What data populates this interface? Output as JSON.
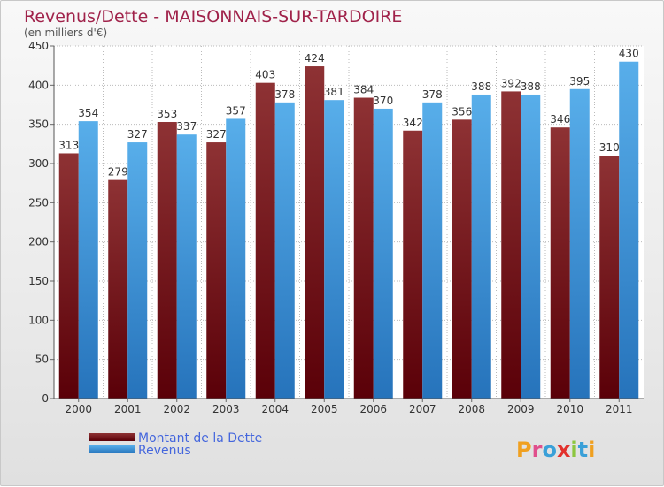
{
  "chart_data": {
    "type": "bar",
    "title": "Revenus/Dette - MAISONNAIS-SUR-TARDOIRE",
    "subtitle": "(en milliers d'€)",
    "categories": [
      "2000",
      "2001",
      "2002",
      "2003",
      "2004",
      "2005",
      "2006",
      "2007",
      "2008",
      "2009",
      "2010",
      "2011"
    ],
    "series": [
      {
        "name": "Montant de la Dette",
        "color": "#7a1e22",
        "values": [
          313,
          279,
          353,
          327,
          403,
          424,
          384,
          342,
          356,
          392,
          346,
          310
        ]
      },
      {
        "name": "Revenus",
        "color": "#3f95d8",
        "values": [
          354,
          327,
          337,
          357,
          378,
          381,
          370,
          378,
          388,
          388,
          395,
          430
        ]
      }
    ],
    "ylim": [
      0,
      450
    ],
    "yticks": [
      0,
      50,
      100,
      150,
      200,
      250,
      300,
      350,
      400,
      450
    ],
    "grid": true,
    "legend": "bottom-left"
  },
  "logo": {
    "text": "Proxiti"
  }
}
